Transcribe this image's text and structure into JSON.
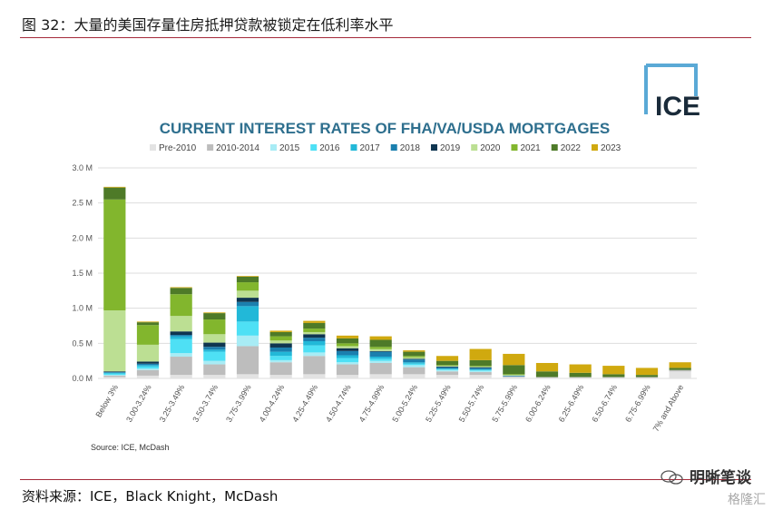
{
  "header": {
    "figure_title": "图 32：大量的美国存量住房抵押贷款被锁定在低利率水平"
  },
  "footer": {
    "source_text": "资料来源：ICE，Black Knight，McDash"
  },
  "watermark": {
    "brand_text": "明晰笔谈",
    "secondary_text": "格隆汇"
  },
  "logo": {
    "text": "ICE"
  },
  "colors": {
    "rule": "#a52a3a",
    "title": "#2e6f8e",
    "grid": "#dddddd",
    "axis_text": "#555555",
    "logo_bracket": "#5aa9d6"
  },
  "chart_data": {
    "type": "bar",
    "stacked": true,
    "title": "CURRENT INTEREST RATES OF FHA/VA/USDA MORTGAGES",
    "xlabel": "",
    "ylabel": "",
    "ylim": [
      0,
      3.0
    ],
    "yticks": [
      0.0,
      0.5,
      1.0,
      1.5,
      2.0,
      2.5,
      3.0
    ],
    "ytick_labels": [
      "0.0 M",
      "0.5 M",
      "1.0 M",
      "1.5 M",
      "2.0 M",
      "2.5 M",
      "3.0 M"
    ],
    "grid": true,
    "legend_position": "top",
    "note": "Source: ICE, McDash",
    "categories": [
      "Below 3%",
      "3.00-3.24%",
      "3.25-3.49%",
      "3.50-3.74%",
      "3.75-3.99%",
      "4.00-4.24%",
      "4.25-4.49%",
      "4.50-4.74%",
      "4.75-4.99%",
      "5.00-5.24%",
      "5.25-5.49%",
      "5.50-5.74%",
      "5.75-5.99%",
      "6.00-6.24%",
      "6.25-6.49%",
      "6.50-6.74%",
      "6.75-6.99%",
      "7% and Above"
    ],
    "series": [
      {
        "name": "Pre-2010",
        "color": "#e3e3e3",
        "values": [
          0.02,
          0.04,
          0.05,
          0.05,
          0.06,
          0.05,
          0.06,
          0.05,
          0.06,
          0.06,
          0.05,
          0.05,
          0.02,
          0.01,
          0.01,
          0.01,
          0.01,
          0.1
        ]
      },
      {
        "name": "2010-2014",
        "color": "#bdbdbd",
        "values": [
          0.02,
          0.08,
          0.26,
          0.15,
          0.4,
          0.18,
          0.26,
          0.15,
          0.16,
          0.1,
          0.05,
          0.04,
          0.01,
          0.01,
          0.01,
          0.01,
          0.01,
          0.02
        ]
      },
      {
        "name": "2015",
        "color": "#a8ecf5",
        "values": [
          0.01,
          0.02,
          0.05,
          0.05,
          0.15,
          0.03,
          0.05,
          0.03,
          0.03,
          0.03,
          0.02,
          0.02,
          0.0,
          0.0,
          0.0,
          0.0,
          0.0,
          0.0
        ]
      },
      {
        "name": "2016",
        "color": "#4ee0f5",
        "values": [
          0.02,
          0.03,
          0.2,
          0.13,
          0.2,
          0.06,
          0.1,
          0.06,
          0.03,
          0.02,
          0.01,
          0.01,
          0.0,
          0.0,
          0.0,
          0.0,
          0.0,
          0.0
        ]
      },
      {
        "name": "2017",
        "color": "#22b8d8",
        "values": [
          0.01,
          0.02,
          0.04,
          0.03,
          0.22,
          0.06,
          0.06,
          0.04,
          0.03,
          0.02,
          0.01,
          0.01,
          0.0,
          0.0,
          0.0,
          0.0,
          0.0,
          0.0
        ]
      },
      {
        "name": "2018",
        "color": "#1b7fae",
        "values": [
          0.01,
          0.02,
          0.02,
          0.04,
          0.06,
          0.06,
          0.05,
          0.06,
          0.07,
          0.04,
          0.02,
          0.02,
          0.01,
          0.0,
          0.0,
          0.0,
          0.0,
          0.0
        ]
      },
      {
        "name": "2019",
        "color": "#0f3550",
        "values": [
          0.01,
          0.03,
          0.05,
          0.06,
          0.06,
          0.06,
          0.05,
          0.04,
          0.01,
          0.01,
          0.01,
          0.01,
          0.0,
          0.0,
          0.0,
          0.0,
          0.0,
          0.0
        ]
      },
      {
        "name": "2020",
        "color": "#bcdf93",
        "values": [
          0.87,
          0.24,
          0.22,
          0.12,
          0.1,
          0.04,
          0.03,
          0.03,
          0.03,
          0.02,
          0.01,
          0.01,
          0.01,
          0.0,
          0.0,
          0.0,
          0.0,
          0.0
        ]
      },
      {
        "name": "2021",
        "color": "#82b62d",
        "values": [
          1.58,
          0.28,
          0.31,
          0.21,
          0.12,
          0.06,
          0.05,
          0.04,
          0.03,
          0.02,
          0.01,
          0.01,
          0.01,
          0.0,
          0.0,
          0.0,
          0.0,
          0.0
        ]
      },
      {
        "name": "2022",
        "color": "#4e7a28",
        "values": [
          0.17,
          0.04,
          0.09,
          0.09,
          0.08,
          0.06,
          0.08,
          0.07,
          0.1,
          0.06,
          0.06,
          0.08,
          0.13,
          0.08,
          0.06,
          0.04,
          0.03,
          0.03
        ]
      },
      {
        "name": "2023",
        "color": "#d0a90f",
        "values": [
          0.01,
          0.01,
          0.01,
          0.01,
          0.01,
          0.02,
          0.03,
          0.04,
          0.05,
          0.02,
          0.07,
          0.16,
          0.16,
          0.12,
          0.12,
          0.12,
          0.1,
          0.08
        ]
      }
    ]
  }
}
